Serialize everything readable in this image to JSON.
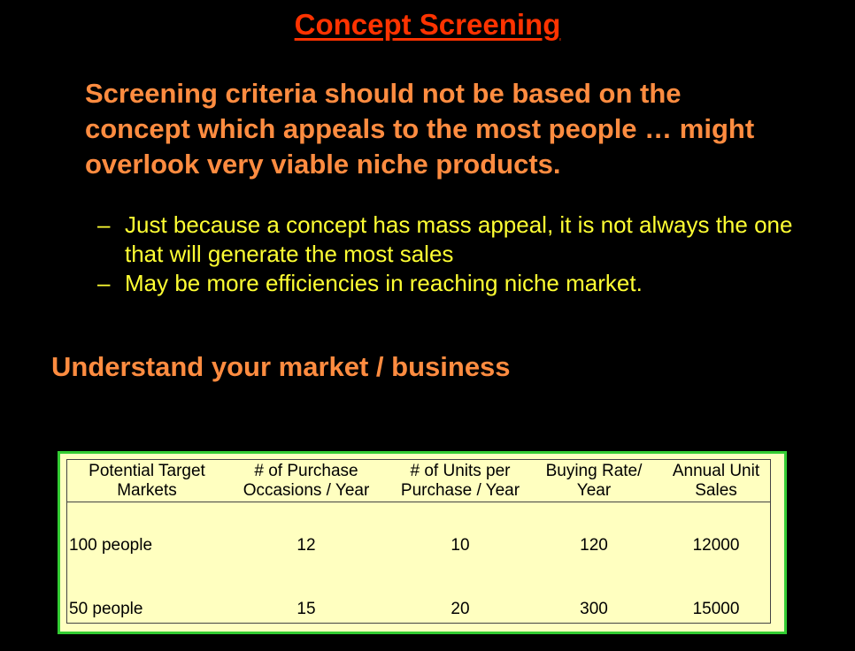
{
  "slide": {
    "title": "Concept Screening",
    "lead_text": "Screening criteria should not be based on the concept which appeals to the most people … might overlook very viable niche products.",
    "bullets": [
      {
        "dash": "–",
        "text": "Just because a concept has mass appeal, it is not always the one that will generate the most sales"
      },
      {
        "dash": "–",
        "text": "May be more efficiencies in reaching niche market."
      }
    ],
    "subheading": "Understand your market / business"
  },
  "table": {
    "headers": [
      {
        "line1": "Potential Target",
        "line2": "Markets"
      },
      {
        "line1": "# of Purchase",
        "line2": "Occasions / Year"
      },
      {
        "line1": "# of Units per",
        "line2": "Purchase / Year"
      },
      {
        "line1": "Buying Rate/",
        "line2": "Year"
      },
      {
        "line1": "Annual Unit",
        "line2": "Sales"
      }
    ],
    "rows": [
      {
        "market": "100 people",
        "occasions": "12",
        "units": "10",
        "rate": "120",
        "sales": "12000"
      },
      {
        "market": "50 people",
        "occasions": "15",
        "units": "20",
        "rate": "300",
        "sales": "15000"
      }
    ]
  },
  "colors": {
    "background": "#000000",
    "title": "#ff3300",
    "heading_text": "#ff8c40",
    "bullet_text": "#ffff33",
    "table_border": "#33cc33",
    "table_fill": "#ffffc0"
  }
}
